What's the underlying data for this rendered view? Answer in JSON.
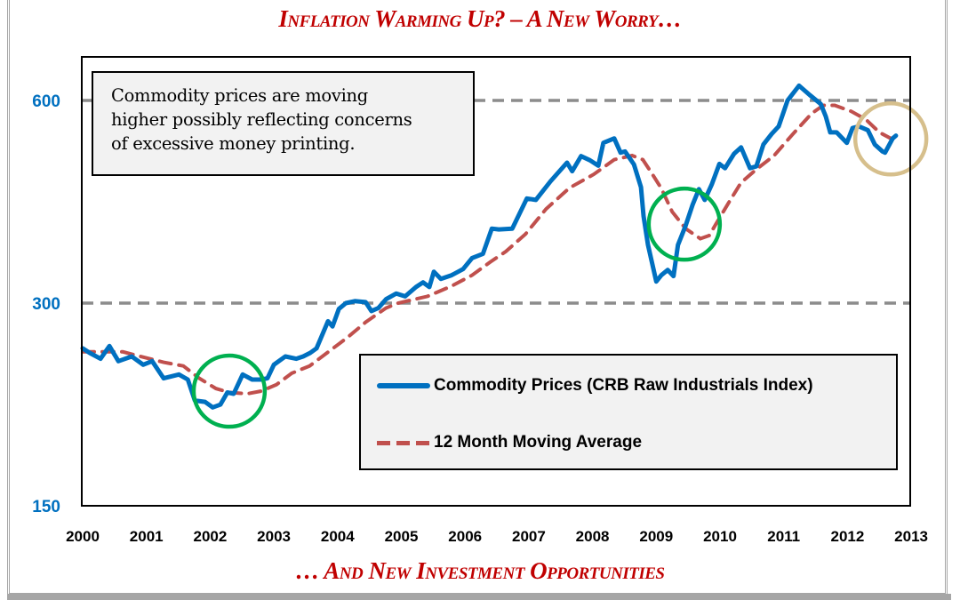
{
  "header": {
    "title": "Inflation Warming Up? – A New Worry…"
  },
  "footer": {
    "title": "… And New Investment Opportunities"
  },
  "annotation": {
    "lines": [
      "Commodity prices are moving",
      "higher possibly reflecting concerns",
      "of excessive money printing."
    ]
  },
  "colors": {
    "title": "#c00000",
    "series_price": "#0070c0",
    "series_ma": "#c0504d",
    "gridline": "#8c8c8c",
    "circle_green": "#00b050",
    "circle_tan": "#d6bf8c",
    "ytick": "#0070c0"
  },
  "chart_data": {
    "type": "line",
    "title": "Inflation Warming Up? – A New Worry…",
    "subtitle": "… And New Investment Opportunities",
    "xlabel": "",
    "ylabel": "",
    "xlim": [
      2000,
      2013
    ],
    "ylim": [
      150,
      700
    ],
    "yscale": "log",
    "xticks": [
      2000,
      2001,
      2002,
      2003,
      2004,
      2005,
      2006,
      2007,
      2008,
      2009,
      2010,
      2011,
      2012,
      2013
    ],
    "yticks": [
      150,
      300,
      600
    ],
    "gridlines": {
      "y": [
        300,
        600
      ],
      "style": "dashed"
    },
    "legend": {
      "placement": "bottom-right",
      "entries": [
        "Commodity Prices (CRB Raw Industrials Index)",
        "12 Month Moving Average"
      ]
    },
    "series": [
      {
        "name": "Commodity Prices (CRB Raw Industrials Index)",
        "style": "solid",
        "x": [
          2000.0,
          2000.11,
          2000.28,
          2000.42,
          2000.56,
          2000.77,
          2000.95,
          2001.09,
          2001.27,
          2001.51,
          2001.65,
          2001.76,
          2001.92,
          2002.04,
          2002.16,
          2002.27,
          2002.37,
          2002.51,
          2002.66,
          2002.8,
          2002.9,
          2003.0,
          2003.18,
          2003.35,
          2003.46,
          2003.57,
          2003.67,
          2003.85,
          2003.92,
          2004.02,
          2004.13,
          2004.27,
          2004.44,
          2004.53,
          2004.64,
          2004.76,
          2004.92,
          2005.06,
          2005.23,
          2005.34,
          2005.44,
          2005.51,
          2005.62,
          2005.79,
          2005.97,
          2006.11,
          2006.28,
          2006.42,
          2006.53,
          2006.74,
          2006.97,
          2007.11,
          2007.34,
          2007.6,
          2007.68,
          2007.82,
          2007.96,
          2008.09,
          2008.17,
          2008.34,
          2008.44,
          2008.51,
          2008.65,
          2008.76,
          2008.8,
          2008.87,
          2009.0,
          2009.08,
          2009.18,
          2009.27,
          2009.34,
          2009.46,
          2009.57,
          2009.67,
          2009.76,
          2009.87,
          2009.99,
          2010.08,
          2010.22,
          2010.33,
          2010.47,
          2010.57,
          2010.68,
          2010.81,
          2010.92,
          2011.06,
          2011.24,
          2011.41,
          2011.58,
          2011.66,
          2011.73,
          2011.83,
          2011.99,
          2012.08,
          2012.18,
          2012.32,
          2012.43,
          2012.55,
          2012.59,
          2012.71,
          2012.76
        ],
        "values": [
          257,
          253,
          248,
          259,
          246,
          250,
          243,
          246,
          232,
          235,
          231,
          215,
          214,
          210,
          212,
          221,
          220,
          235,
          231,
          231,
          232,
          243,
          250,
          248,
          250,
          253,
          257,
          282,
          277,
          294,
          300,
          302,
          301,
          292,
          295,
          304,
          310,
          307,
          317,
          322,
          317,
          334,
          326,
          330,
          337,
          350,
          355,
          387,
          386,
          387,
          429,
          427,
          455,
          485,
          471,
          496,
          489,
          480,
          519,
          527,
          502,
          504,
          482,
          446,
          404,
          366,
          323,
          330,
          336,
          329,
          366,
          391,
          420,
          443,
          427,
          450,
          483,
          476,
          500,
          511,
          476,
          479,
          516,
          535,
          549,
          600,
          631,
          611,
          593,
          568,
          538,
          538,
          519,
          546,
          549,
          542,
          516,
          504,
          502,
          527,
          532
        ]
      },
      {
        "name": "12 Month Moving Average",
        "style": "dashed",
        "x": [
          2000.0,
          2000.63,
          2000.98,
          2001.27,
          2001.58,
          2001.83,
          2002.09,
          2002.3,
          2002.58,
          2002.8,
          2003.04,
          2003.28,
          2003.56,
          2003.88,
          2004.16,
          2004.44,
          2004.76,
          2004.95,
          2005.41,
          2005.79,
          2006.11,
          2006.39,
          2006.64,
          2006.95,
          2007.27,
          2007.64,
          2008.02,
          2008.34,
          2008.62,
          2008.79,
          2008.94,
          2009.08,
          2009.25,
          2009.46,
          2009.69,
          2009.83,
          2009.97,
          2010.13,
          2010.33,
          2010.57,
          2010.85,
          2011.13,
          2011.44,
          2011.62,
          2011.8,
          2012.06,
          2012.29,
          2012.5,
          2012.71
        ],
        "values": [
          254,
          254,
          249,
          245,
          242,
          232,
          224,
          221,
          220,
          222,
          227,
          236,
          242,
          255,
          267,
          281,
          295,
          300,
          307,
          318,
          330,
          345,
          358,
          380,
          414,
          445,
          466,
          490,
          497,
          490,
          466,
          444,
          410,
          387,
          374,
          378,
          398,
          422,
          453,
          474,
          497,
          533,
          574,
          590,
          590,
          578,
          562,
          538,
          525
        ]
      }
    ],
    "annotations": [
      {
        "type": "text-box",
        "text": "Commodity prices are moving higher possibly reflecting concerns of excessive money printing.",
        "placement": "top-left"
      },
      {
        "type": "circle",
        "color": "green",
        "center": [
          2002.3,
          222
        ]
      },
      {
        "type": "circle",
        "color": "green",
        "center": [
          2009.44,
          393
        ]
      },
      {
        "type": "circle",
        "color": "tan",
        "center": [
          2012.68,
          526
        ]
      }
    ]
  }
}
